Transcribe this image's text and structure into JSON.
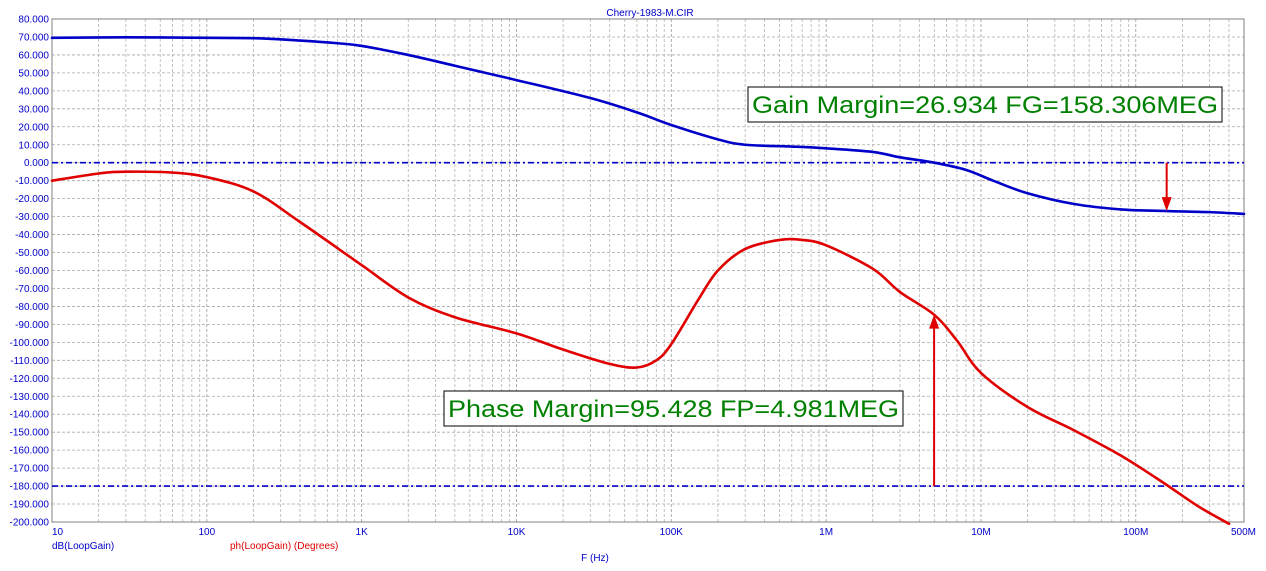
{
  "chart_data": {
    "type": "line",
    "title": "Cherry-1983-M.CIR",
    "xlabel": "F (Hz)",
    "xscale": "log",
    "xlim": [
      10,
      500000000
    ],
    "ylim": [
      -200,
      80
    ],
    "grid": true,
    "x_tick_labels": [
      {
        "value": 10,
        "label": "10"
      },
      {
        "value": 100,
        "label": "100"
      },
      {
        "value": 1000,
        "label": "1K"
      },
      {
        "value": 10000,
        "label": "10K"
      },
      {
        "value": 100000,
        "label": "100K"
      },
      {
        "value": 1000000,
        "label": "1M"
      },
      {
        "value": 10000000,
        "label": "10M"
      },
      {
        "value": 100000000,
        "label": "100M"
      },
      {
        "value": 500000000,
        "label": "500M"
      }
    ],
    "y_ticks": [
      80,
      70,
      60,
      50,
      40,
      30,
      20,
      10,
      0,
      -10,
      -20,
      -30,
      -40,
      -50,
      -60,
      -70,
      -80,
      -90,
      -100,
      -110,
      -120,
      -130,
      -140,
      -150,
      -160,
      -170,
      -180,
      -190,
      -200
    ],
    "y_tick_labels": [
      "80.000",
      "70.000",
      "60.000",
      "50.000",
      "40.000",
      "30.000",
      "20.000",
      "10.000",
      "0.000",
      "-10.000",
      "-20.000",
      "-30.000",
      "-40.000",
      "-50.000",
      "-60.000",
      "-70.000",
      "-80.000",
      "-90.000",
      "-100.000",
      "-110.000",
      "-120.000",
      "-130.000",
      "-140.000",
      "-150.000",
      "-160.000",
      "-170.000",
      "-180.000",
      "-190.000",
      "-200.000"
    ],
    "series": [
      {
        "name": "dB(LoopGain)",
        "color": "#0000c8",
        "x": [
          10,
          30,
          100,
          200,
          400,
          700,
          1000,
          2000,
          4000,
          10000,
          30000,
          60000,
          100000,
          200000,
          300000,
          600000,
          1000000,
          2000000,
          3000000,
          5000000,
          8000000,
          12000000,
          20000000,
          40000000,
          80000000,
          158306000,
          300000000,
          500000000
        ],
        "y": [
          69.5,
          69.8,
          69.5,
          69.3,
          68,
          66.5,
          65,
          60,
          54,
          46,
          36,
          28,
          21,
          13,
          10,
          9,
          8,
          6,
          3,
          0,
          -4,
          -10,
          -17,
          -23,
          -26,
          -26.9,
          -27.5,
          -28.5
        ]
      },
      {
        "name": "ph(LoopGain) (Degrees)",
        "color": "#e00000",
        "x": [
          10,
          20,
          30,
          60,
          100,
          200,
          400,
          1000,
          2000,
          4000,
          10000,
          20000,
          40000,
          60000,
          80000,
          100000,
          150000,
          200000,
          300000,
          500000,
          700000,
          1000000,
          2000000,
          3000000,
          4980000,
          7000000,
          10000000,
          20000000,
          40000000,
          80000000,
          150000000,
          250000000,
          400000000
        ],
        "y": [
          -10,
          -6,
          -5,
          -5.5,
          -8,
          -16,
          -33,
          -57,
          -75,
          -86,
          -95,
          -104,
          -112,
          -114,
          -110,
          -101,
          -76,
          -60,
          -48,
          -43,
          -43,
          -46,
          -59,
          -72,
          -84.6,
          -99,
          -117,
          -136,
          -149,
          -163,
          -178,
          -191,
          -201
        ]
      }
    ],
    "reference_lines": [
      0,
      -180
    ],
    "annotations": [
      {
        "text": "Gain Margin=26.934 FG=158.306MEG",
        "arrow_x": 158306000,
        "arrow_from_y": 0,
        "arrow_to_y": -26.934
      },
      {
        "text": "Phase Margin=95.428 FP=4.981MEG",
        "arrow_x": 4981000,
        "arrow_from_y": -180,
        "arrow_to_y": -84.572
      }
    ],
    "legend": [
      "dB(LoopGain)",
      "ph(LoopGain) (Degrees)"
    ]
  }
}
